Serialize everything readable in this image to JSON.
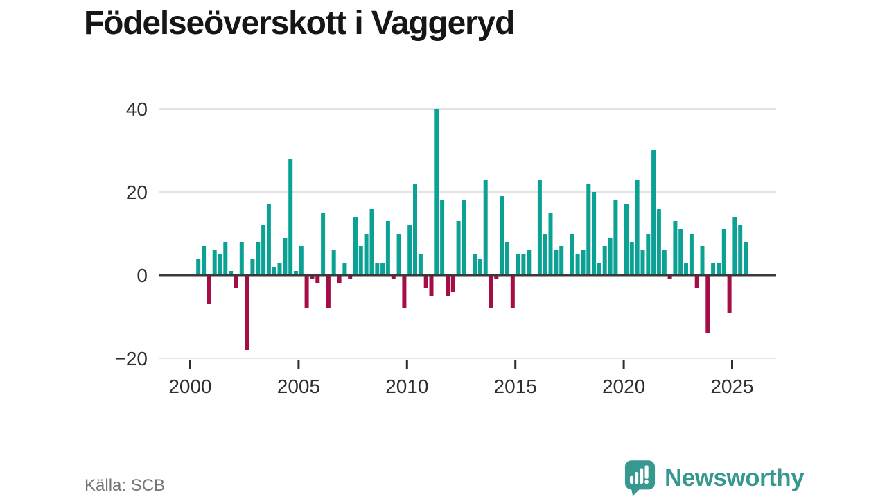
{
  "title": "Födelseöverskott i Vaggeryd",
  "source": {
    "text": "Källa: SCB"
  },
  "logo": {
    "text": "Newsworthy",
    "icon": "speech-bubble-with-bar-chart-and-exclamation",
    "color": "#37988f"
  },
  "chart_data": {
    "type": "bar",
    "title": "Födelseöverskott i Vaggeryd",
    "x_start": "2000-Q2",
    "frequency": "quarterly",
    "x_tick_years": [
      2000,
      2005,
      2010,
      2015,
      2020,
      2025
    ],
    "y_ticks": [
      40,
      20,
      0,
      -20
    ],
    "ylim": [
      -20,
      40
    ],
    "grid": true,
    "legend": false,
    "colors": {
      "positive": "#0ca195",
      "negative": "#a60c45",
      "axis_text": "#2e2e2e",
      "grid": "#e4e4e4",
      "zero_line": "#3a3a3a"
    },
    "values": [
      4,
      7,
      -7,
      6,
      5,
      8,
      1,
      -3,
      8,
      -18,
      4,
      8,
      12,
      17,
      2,
      3,
      9,
      28,
      1,
      7,
      -8,
      -1,
      -2,
      15,
      -8,
      6,
      -2,
      3,
      -1,
      14,
      7,
      10,
      16,
      3,
      3,
      13,
      -1,
      10,
      -8,
      12,
      22,
      5,
      -3,
      -5,
      40,
      18,
      -5,
      -4,
      13,
      18,
      0,
      5,
      4,
      23,
      -8,
      -1,
      19,
      8,
      -8,
      5,
      5,
      6,
      0,
      23,
      10,
      15,
      6,
      7,
      0,
      10,
      5,
      6,
      22,
      20,
      3,
      7,
      9,
      18,
      0,
      17,
      8,
      23,
      6,
      10,
      30,
      16,
      6,
      -1,
      13,
      11,
      3,
      10,
      -3,
      7,
      -14,
      3,
      3,
      11,
      -9,
      14,
      12,
      8
    ]
  }
}
